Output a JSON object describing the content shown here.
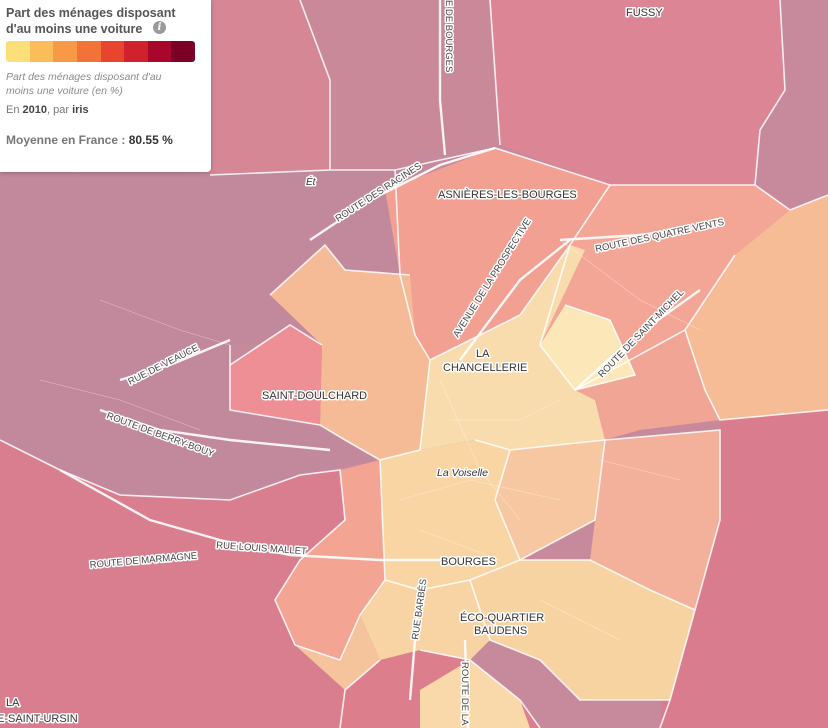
{
  "legend": {
    "title": "Part des ménages disposant d'au moins une voiture",
    "info_icon": "info-icon",
    "scale_colors": [
      "#fbe07a",
      "#fbbd5a",
      "#f89a45",
      "#f3723a",
      "#e8452f",
      "#d0212c",
      "#a8062a",
      "#7c0026"
    ],
    "subtitle": "Part des ménages disposant d'au moins une voiture (en %)",
    "period_prefix": "En",
    "year": "2010",
    "period_mid": ", par",
    "unit": "iris",
    "average_label": "Moyenne en France :",
    "average_value": "80.55 %"
  },
  "map": {
    "places": {
      "fussy": "FUSSY",
      "asnieres": "ASNIÈRES-LES-BOURGES",
      "chancellerie_1": "LA",
      "chancellerie_2": "CHANCELLERIE",
      "saint_doulchard": "SAINT-DOULCHARD",
      "voiselle": "La Voiselle",
      "bourges": "BOURGES",
      "eco_1": "ÉCO-QUARTIER",
      "eco_2": "BAUDENS",
      "la": "LA",
      "saint_ursin": "E-SAINT-URSIN",
      "et": "Ét"
    },
    "roads": {
      "bourges_n": "E DE BOURGES",
      "racines": "ROUTE DES RACINES",
      "prospective": "AVENUE DE LA PROSPECTIVE",
      "quatre_vents": "ROUTE DES QUATRE VENTS",
      "saint_michel": "ROUTE DE SAINT-MICHEL",
      "veauce": "RUE DE VEAUCE",
      "berry_bouy": "ROUTE DE BERRY-BOUY",
      "marmagne": "ROUTE DE MARMAGNE",
      "louis_mallet": "RUE LOUIS MALLET",
      "barbes": "RUE BARBÈS",
      "route_de_la": "ROUTE DE LA"
    }
  }
}
